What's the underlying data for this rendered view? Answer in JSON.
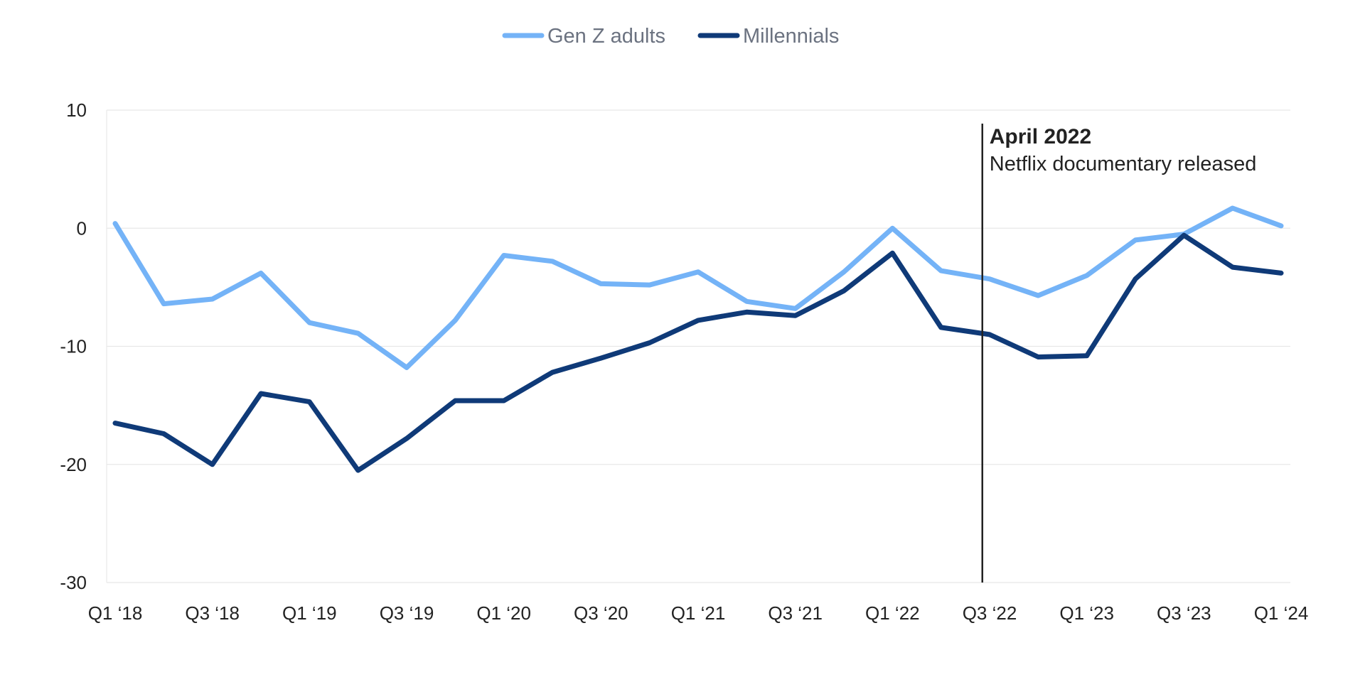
{
  "chart_data": {
    "type": "line",
    "title": "",
    "xlabel": "",
    "ylabel": "",
    "ylim": [
      -30,
      10
    ],
    "yticks": [
      10,
      0,
      -10,
      -20,
      -30
    ],
    "ytick_labels": [
      "10",
      "0",
      "-10",
      "-20",
      "-30"
    ],
    "grid": true,
    "legend_position": "top-center",
    "x": [
      "Q1 '18",
      "Q2 '18",
      "Q3 '18",
      "Q4 '18",
      "Q1 '19",
      "Q2 '19",
      "Q3 '19",
      "Q4 '19",
      "Q1 '20",
      "Q2 '20",
      "Q3 '20",
      "Q4 '20",
      "Q1 '21",
      "Q2 '21",
      "Q3 '21",
      "Q4 '21",
      "Q1 '22",
      "Q2 '22",
      "Q3 '22",
      "Q4 '22",
      "Q1 '23",
      "Q2 '23",
      "Q3 '23",
      "Q4 '23",
      "Q1 '24"
    ],
    "xtick_labels": [
      {
        "index": 0,
        "label": "Q1 ‘18"
      },
      {
        "index": 2,
        "label": "Q3 ‘18"
      },
      {
        "index": 4,
        "label": "Q1 ‘19"
      },
      {
        "index": 6,
        "label": "Q3 ‘19"
      },
      {
        "index": 8,
        "label": "Q1 ‘20"
      },
      {
        "index": 10,
        "label": "Q3 ‘20"
      },
      {
        "index": 12,
        "label": "Q1 ‘21"
      },
      {
        "index": 14,
        "label": "Q3 ‘21"
      },
      {
        "index": 16,
        "label": "Q1 ‘22"
      },
      {
        "index": 18,
        "label": "Q3 ‘22"
      },
      {
        "index": 20,
        "label": "Q1 ‘23"
      },
      {
        "index": 22,
        "label": "Q3 ‘23"
      },
      {
        "index": 24,
        "label": "Q1 ‘24"
      }
    ],
    "series": [
      {
        "name": "Gen Z adults",
        "color": "#74b3f7",
        "values": [
          0.4,
          -6.4,
          -6.0,
          -3.8,
          -8.0,
          -8.9,
          -11.8,
          -7.8,
          -2.3,
          -2.8,
          -4.7,
          -4.8,
          -3.7,
          -6.2,
          -6.8,
          -3.7,
          0.0,
          -3.6,
          -4.3,
          -5.7,
          -4.0,
          -1.0,
          -0.5,
          1.7,
          0.2
        ]
      },
      {
        "name": "Millennials",
        "color": "#0f3a78",
        "values": [
          -16.5,
          -17.4,
          -20.0,
          -14.0,
          -14.7,
          -20.5,
          -17.8,
          -14.6,
          -14.6,
          -12.2,
          -11.0,
          -9.7,
          -7.8,
          -7.1,
          -7.4,
          -5.3,
          -2.1,
          -8.4,
          -9.0,
          -10.9,
          -10.8,
          -4.3,
          -0.6,
          -3.3,
          -3.8
        ]
      }
    ],
    "annotation": {
      "x_value": 17.85,
      "title": "April 2022",
      "text": "Netflix documentary released"
    }
  }
}
